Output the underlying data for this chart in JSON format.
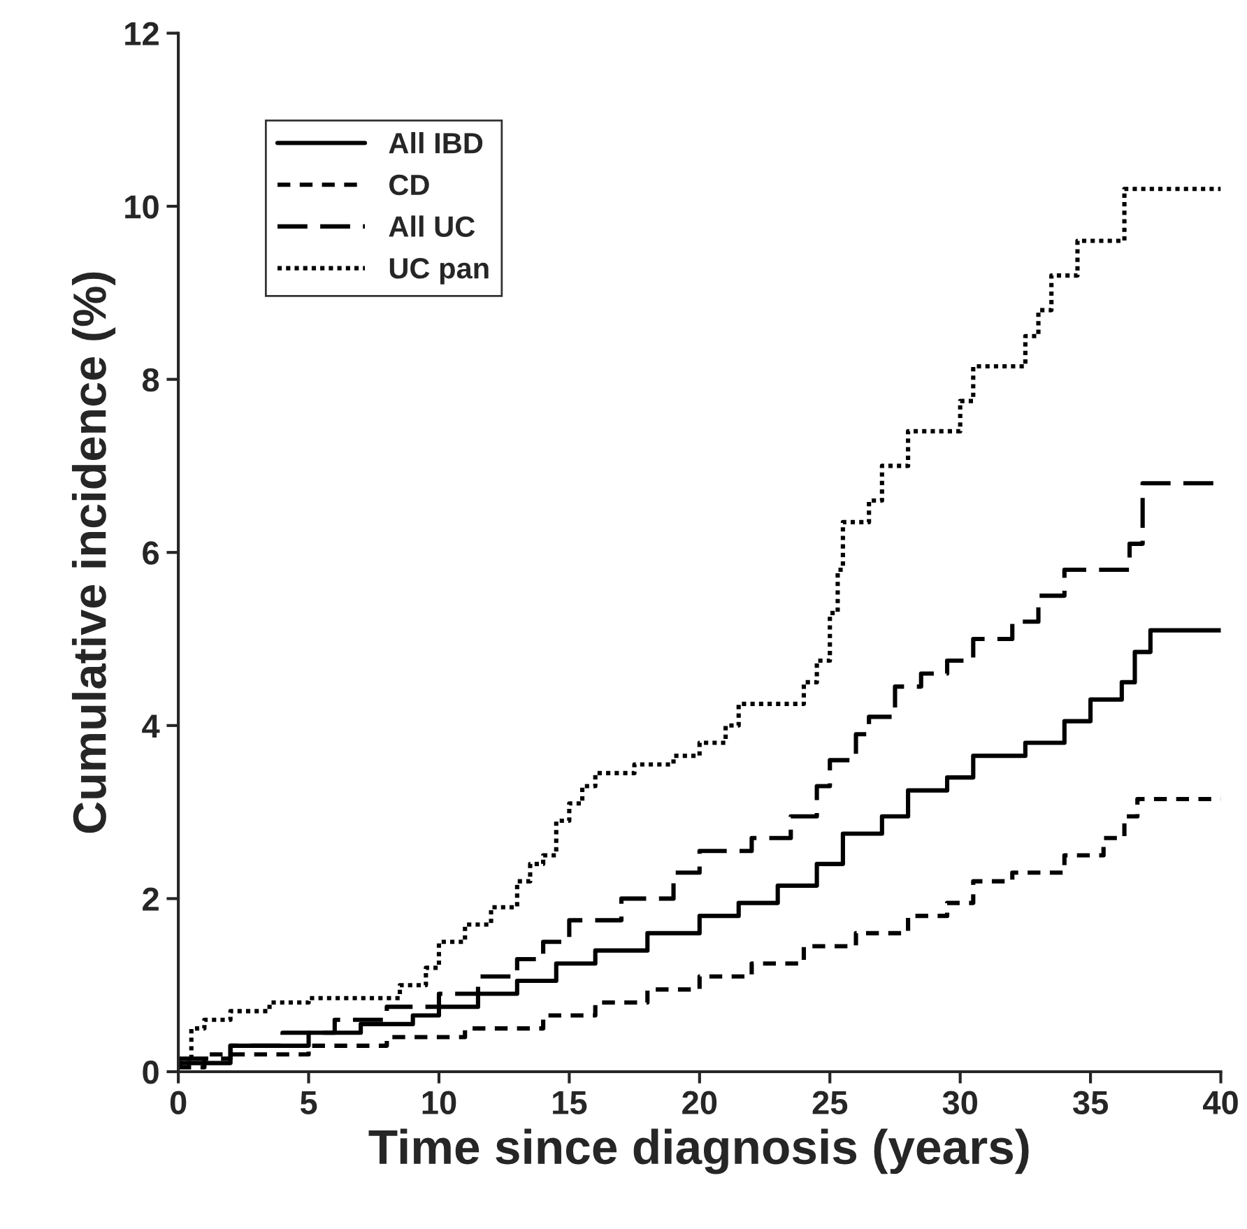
{
  "chart_data": {
    "type": "step",
    "xlabel": "Time since diagnosis (years)",
    "ylabel": "Cumulative incidence (%)",
    "xlim": [
      0,
      40
    ],
    "xticks": [
      0,
      5,
      10,
      15,
      20,
      25,
      30,
      35,
      40
    ],
    "ylim": [
      0,
      12
    ],
    "yticks": [
      0,
      2,
      4,
      6,
      8,
      10,
      12
    ],
    "grid": false,
    "legend": "top left",
    "marker": "none",
    "series": [
      {
        "name": "All IBD",
        "color": "#000000",
        "line_style": "solid",
        "x": [
          0,
          2,
          5,
          7,
          9,
          10,
          11.5,
          13,
          14.5,
          16,
          18,
          20,
          21.5,
          23,
          24.5,
          25.5,
          27,
          28,
          29.5,
          30.5,
          32.5,
          34,
          35,
          36.2,
          36.7,
          37.3,
          40
        ],
        "values": [
          0.1,
          0.3,
          0.45,
          0.55,
          0.65,
          0.75,
          0.9,
          1.05,
          1.25,
          1.4,
          1.6,
          1.8,
          1.95,
          2.15,
          2.4,
          2.75,
          2.95,
          3.25,
          3.4,
          3.65,
          3.8,
          4.05,
          4.3,
          4.5,
          4.85,
          5.1,
          5.1
        ]
      },
      {
        "name": "CD",
        "color": "#000000",
        "line_style": "dashed",
        "x": [
          0,
          1,
          5,
          8,
          11,
          14,
          16,
          18,
          20,
          22,
          24,
          26,
          28,
          29.5,
          30.5,
          32,
          34,
          35.5,
          36.3,
          36.8,
          40
        ],
        "values": [
          0.05,
          0.2,
          0.3,
          0.4,
          0.5,
          0.65,
          0.8,
          0.95,
          1.1,
          1.25,
          1.45,
          1.6,
          1.8,
          1.95,
          2.2,
          2.3,
          2.5,
          2.7,
          2.95,
          3.15,
          3.15
        ]
      },
      {
        "name": "All UC",
        "color": "#000000",
        "line_style": "dashed",
        "x": [
          0,
          2,
          4,
          6,
          8,
          10,
          11.5,
          13,
          14,
          15,
          17,
          19,
          20,
          22,
          23.5,
          24.5,
          25,
          26,
          26.5,
          27.5,
          28.5,
          29.5,
          30.5,
          32,
          33,
          34,
          36.5,
          37,
          40
        ],
        "values": [
          0.15,
          0.3,
          0.45,
          0.6,
          0.75,
          0.9,
          1.1,
          1.3,
          1.5,
          1.75,
          2.0,
          2.3,
          2.55,
          2.7,
          2.95,
          3.3,
          3.6,
          3.9,
          4.1,
          4.45,
          4.6,
          4.75,
          5.0,
          5.2,
          5.5,
          5.8,
          6.1,
          6.8,
          6.8
        ]
      },
      {
        "name": "UC pan",
        "color": "#000000",
        "line_style": "dotted",
        "x": [
          0,
          0.5,
          1,
          2,
          3.5,
          5,
          8.5,
          9.5,
          10,
          11,
          12,
          13,
          13.5,
          14,
          14.5,
          15,
          15.5,
          16,
          17.5,
          19,
          20,
          21,
          21.5,
          24,
          24.5,
          25,
          25.3,
          25.5,
          26.5,
          27,
          28,
          30,
          30.5,
          32.5,
          33,
          33.5,
          34.5,
          36.3,
          40
        ],
        "values": [
          0.1,
          0.5,
          0.6,
          0.7,
          0.8,
          0.85,
          1.0,
          1.2,
          1.5,
          1.7,
          1.9,
          2.2,
          2.4,
          2.5,
          2.9,
          3.1,
          3.3,
          3.45,
          3.55,
          3.65,
          3.8,
          4.0,
          4.25,
          4.5,
          4.75,
          5.3,
          5.8,
          6.35,
          6.6,
          7.0,
          7.4,
          7.75,
          8.15,
          8.5,
          8.8,
          9.2,
          9.6,
          10.2,
          10.2
        ]
      }
    ]
  }
}
